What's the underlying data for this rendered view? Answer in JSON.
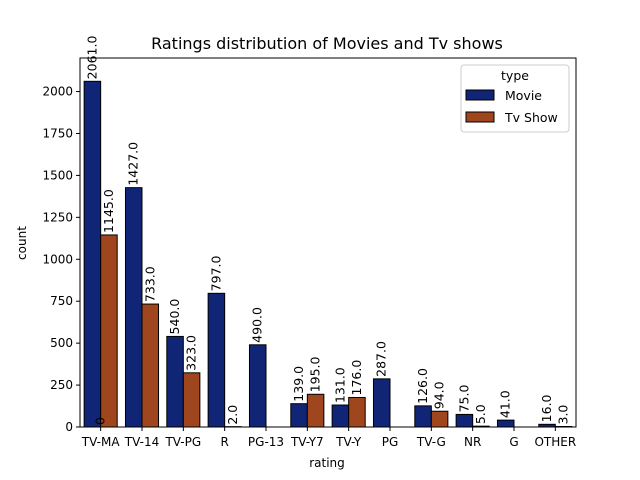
{
  "chart_data": {
    "type": "bar",
    "title": "Ratings distribution of Movies and Tv shows",
    "xlabel": "rating",
    "ylabel": "count",
    "categories": [
      "TV-MA",
      "TV-14",
      "TV-PG",
      "R",
      "PG-13",
      "TV-Y7",
      "TV-Y",
      "PG",
      "TV-G",
      "NR",
      "G",
      "OTHER"
    ],
    "ylim": [
      0,
      2200
    ],
    "yticks": [
      0,
      250,
      500,
      750,
      1000,
      1250,
      1500,
      1750,
      2000
    ],
    "grid": false,
    "legend": {
      "title": "type",
      "placement": "top-right"
    },
    "series": [
      {
        "name": "Movie",
        "color": "#112577",
        "values": [
          2061,
          1427,
          540,
          797,
          490,
          139,
          131,
          287,
          126,
          75,
          41,
          16
        ],
        "labels": [
          "2061.0",
          "1427.0",
          "540.0",
          "797.0",
          "490.0",
          "139.0",
          "131.0",
          "287.0",
          "126.0",
          "75.0",
          "41.0",
          "16.0"
        ]
      },
      {
        "name": "Tv Show",
        "color": "#a0461e",
        "values": [
          1145,
          733,
          323,
          2,
          null,
          195,
          176,
          null,
          94,
          5,
          null,
          3
        ],
        "labels": [
          "1145.0",
          "733.0",
          "323.0",
          "2.0",
          "",
          "195.0",
          "176.0",
          "",
          "94.0",
          "5.0",
          "",
          "3.0"
        ]
      }
    ],
    "extra_annotations": [
      {
        "text": "0",
        "category": "TV-MA"
      }
    ]
  }
}
